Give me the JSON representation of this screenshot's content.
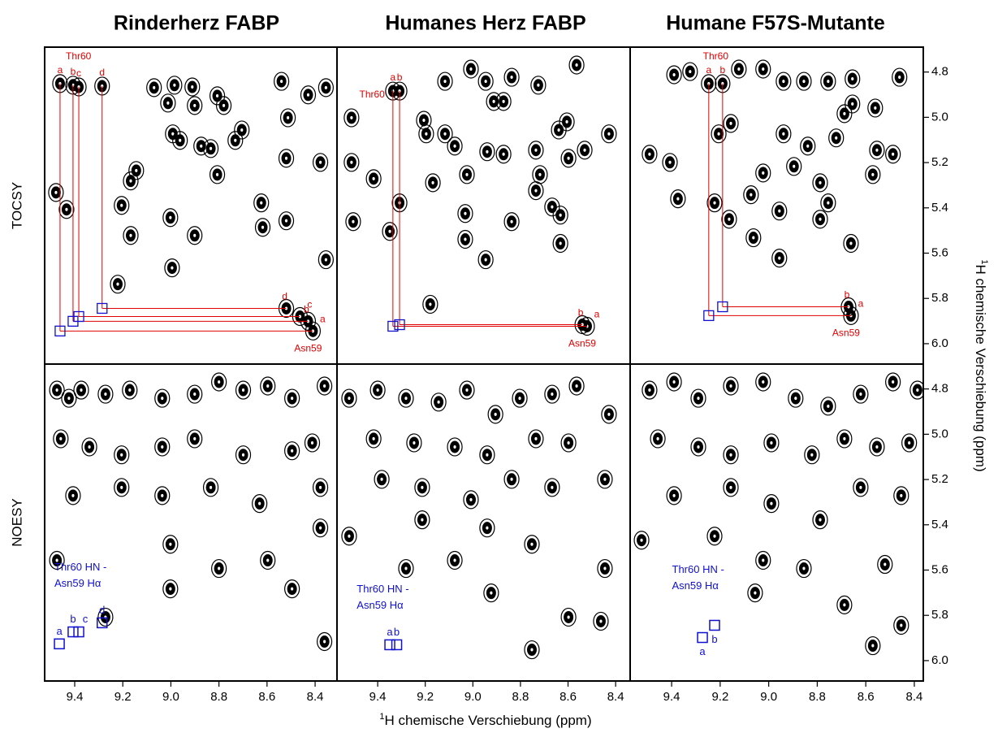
{
  "column_titles": [
    "Rinderherz FABP",
    "Humanes Herz FABP",
    "Humane F57S-Mutante"
  ],
  "row_labels": [
    "TOCSY",
    "NOESY"
  ],
  "x_axis_label": {
    "sup": "1",
    "text": "H chemische Verschiebung (ppm)"
  },
  "y_axis_label": {
    "sup": "1",
    "text": "H chemische Verschiebung (ppm)"
  },
  "xticks": [
    9.4,
    9.2,
    {
      "value": 9,
      "label": "9.0"
    },
    8.8,
    8.6,
    8.4
  ],
  "yticks": [
    4.8,
    {
      "value": 5,
      "label": "5.0"
    },
    5.2,
    5.4,
    5.6,
    5.8,
    {
      "value": 6,
      "label": "6.0"
    }
  ],
  "ylim": [
    4.69,
    6.09
  ],
  "columns": [
    {
      "xlim": [
        9.525,
        8.309
      ],
      "tocsy": {
        "thr_label": "Thr60",
        "asn_label": "Asn59",
        "correlations": [
          {
            "label": "a",
            "thr_hn": 9.461,
            "thr_ha": 4.851,
            "asn_hn": 8.409,
            "asn_ha": 5.944
          },
          {
            "label": "b",
            "thr_hn": 9.407,
            "thr_ha": 4.858,
            "asn_hn": 8.429,
            "asn_ha": 5.901
          },
          {
            "label": "c",
            "thr_hn": 9.383,
            "thr_ha": 4.866,
            "asn_hn": 8.463,
            "asn_ha": 5.88
          },
          {
            "label": "d",
            "thr_hn": 9.286,
            "thr_ha": 4.862,
            "asn_hn": 8.52,
            "asn_ha": 5.844
          }
        ],
        "peaks": [
          [
            9.07,
            4.869
          ],
          [
            8.985,
            4.858
          ],
          [
            8.911,
            4.866
          ],
          [
            8.901,
            4.948
          ],
          [
            9.012,
            4.937
          ],
          [
            8.807,
            4.905
          ],
          [
            8.78,
            4.948
          ],
          [
            8.54,
            4.841
          ],
          [
            8.513,
            5.002
          ],
          [
            8.355,
            4.869
          ],
          [
            8.429,
            4.901
          ],
          [
            8.992,
            5.073
          ],
          [
            8.962,
            5.102
          ],
          [
            8.874,
            5.127
          ],
          [
            8.834,
            5.138
          ],
          [
            8.732,
            5.102
          ],
          [
            8.705,
            5.056
          ],
          [
            9.167,
            5.281
          ],
          [
            9.144,
            5.235
          ],
          [
            8.807,
            5.253
          ],
          [
            8.624,
            5.378
          ],
          [
            8.52,
            5.181
          ],
          [
            8.378,
            5.199
          ],
          [
            9.478,
            5.332
          ],
          [
            9.434,
            5.407
          ],
          [
            9.205,
            5.389
          ],
          [
            9.002,
            5.443
          ],
          [
            9.167,
            5.522
          ],
          [
            8.901,
            5.522
          ],
          [
            8.618,
            5.486
          ],
          [
            8.355,
            5.629
          ],
          [
            9.221,
            5.737
          ],
          [
            8.995,
            5.665
          ],
          [
            8.52,
            5.457
          ]
        ]
      },
      "noesy": {
        "note": [
          "Thr60 HN -",
          "Asn59 Hα"
        ],
        "boxes": [
          {
            "label": "a",
            "x": 9.464,
            "y": 5.926
          },
          {
            "label": "b",
            "x": 9.407,
            "y": 5.873
          },
          {
            "label": "c",
            "x": 9.383,
            "y": 5.873
          },
          {
            "label": "d",
            "x": 9.286,
            "y": 5.833
          }
        ],
        "peaks": [
          [
            9.474,
            4.805
          ],
          [
            9.424,
            4.841
          ],
          [
            9.373,
            4.805
          ],
          [
            9.272,
            4.823
          ],
          [
            9.171,
            4.805
          ],
          [
            9.036,
            4.841
          ],
          [
            8.901,
            4.823
          ],
          [
            8.8,
            4.769
          ],
          [
            8.699,
            4.805
          ],
          [
            8.597,
            4.787
          ],
          [
            8.496,
            4.841
          ],
          [
            8.361,
            4.787
          ],
          [
            9.458,
            5.02
          ],
          [
            9.339,
            5.056
          ],
          [
            9.205,
            5.091
          ],
          [
            9.036,
            5.056
          ],
          [
            8.901,
            5.02
          ],
          [
            8.699,
            5.091
          ],
          [
            8.496,
            5.073
          ],
          [
            8.412,
            5.038
          ],
          [
            9.407,
            5.271
          ],
          [
            9.205,
            5.235
          ],
          [
            9.036,
            5.271
          ],
          [
            8.834,
            5.235
          ],
          [
            8.631,
            5.306
          ],
          [
            8.378,
            5.235
          ],
          [
            9.474,
            5.557
          ],
          [
            9.002,
            5.486
          ],
          [
            8.8,
            5.593
          ],
          [
            8.597,
            5.557
          ],
          [
            8.378,
            5.414
          ],
          [
            9.002,
            5.683
          ],
          [
            9.272,
            5.808
          ],
          [
            8.496,
            5.683
          ],
          [
            8.361,
            5.916
          ]
        ]
      }
    },
    {
      "xlim": [
        9.571,
        8.339
      ],
      "tocsy": {
        "thr_label": "Thr60",
        "asn_label": "Asn59",
        "correlations": [
          {
            "label": "a",
            "thr_hn": 9.336,
            "thr_ha": 4.884,
            "asn_hn": 8.52,
            "asn_ha": 5.923
          },
          {
            "label": "b",
            "thr_hn": 9.308,
            "thr_ha": 4.884,
            "asn_hn": 8.54,
            "asn_ha": 5.916
          }
        ],
        "peaks": [
          [
            9.51,
            5.002
          ],
          [
            9.206,
            5.013
          ],
          [
            9.117,
            4.841
          ],
          [
            9.008,
            4.787
          ],
          [
            8.946,
            4.841
          ],
          [
            8.837,
            4.823
          ],
          [
            8.871,
            4.93
          ],
          [
            8.725,
            4.858
          ],
          [
            8.564,
            4.769
          ],
          [
            8.605,
            5.02
          ],
          [
            8.639,
            5.056
          ],
          [
            8.912,
            4.93
          ],
          [
            9.196,
            5.073
          ],
          [
            9.117,
            5.073
          ],
          [
            9.076,
            5.127
          ],
          [
            8.94,
            5.152
          ],
          [
            8.871,
            5.163
          ],
          [
            8.735,
            5.145
          ],
          [
            8.598,
            5.181
          ],
          [
            8.53,
            5.145
          ],
          [
            8.428,
            5.073
          ],
          [
            9.51,
            5.199
          ],
          [
            9.417,
            5.271
          ],
          [
            9.168,
            5.289
          ],
          [
            9.025,
            5.253
          ],
          [
            8.718,
            5.253
          ],
          [
            8.735,
            5.324
          ],
          [
            9.503,
            5.461
          ],
          [
            9.308,
            5.378
          ],
          [
            9.032,
            5.425
          ],
          [
            8.837,
            5.461
          ],
          [
            8.632,
            5.432
          ],
          [
            8.667,
            5.396
          ],
          [
            9.032,
            5.539
          ],
          [
            8.632,
            5.557
          ],
          [
            8.946,
            5.629
          ],
          [
            9.349,
            5.504
          ],
          [
            9.179,
            5.826
          ]
        ]
      },
      "noesy": {
        "note": [
          "Thr60 HN -",
          "Asn59 Hα"
        ],
        "boxes": [
          {
            "label": "a",
            "x": 9.349,
            "y": 5.93
          },
          {
            "label": "b",
            "x": 9.32,
            "y": 5.93
          }
        ],
        "peaks": [
          [
            9.52,
            4.841
          ],
          [
            9.4,
            4.805
          ],
          [
            9.281,
            4.841
          ],
          [
            9.144,
            4.858
          ],
          [
            9.025,
            4.805
          ],
          [
            8.905,
            4.912
          ],
          [
            8.803,
            4.841
          ],
          [
            8.667,
            4.823
          ],
          [
            8.564,
            4.787
          ],
          [
            8.428,
            4.912
          ],
          [
            9.417,
            5.02
          ],
          [
            9.247,
            5.038
          ],
          [
            9.076,
            5.056
          ],
          [
            8.94,
            5.091
          ],
          [
            8.735,
            5.02
          ],
          [
            8.598,
            5.038
          ],
          [
            9.383,
            5.199
          ],
          [
            9.213,
            5.235
          ],
          [
            9.008,
            5.289
          ],
          [
            8.837,
            5.199
          ],
          [
            8.667,
            5.235
          ],
          [
            8.445,
            5.199
          ],
          [
            9.52,
            5.45
          ],
          [
            9.213,
            5.378
          ],
          [
            8.94,
            5.414
          ],
          [
            8.752,
            5.486
          ],
          [
            8.445,
            5.593
          ],
          [
            9.281,
            5.593
          ],
          [
            9.076,
            5.557
          ],
          [
            8.923,
            5.701
          ],
          [
            8.462,
            5.826
          ],
          [
            8.752,
            5.952
          ],
          [
            8.598,
            5.808
          ]
        ]
      }
    },
    {
      "xlim": [
        9.571,
        8.363
      ],
      "tocsy": {
        "thr_label": "Thr60",
        "asn_label": "Asn59",
        "correlations": [
          {
            "label": "a",
            "thr_hn": 9.247,
            "thr_ha": 4.851,
            "asn_hn": 8.661,
            "asn_ha": 5.876
          },
          {
            "label": "b",
            "thr_hn": 9.19,
            "thr_ha": 4.851,
            "asn_hn": 8.671,
            "asn_ha": 5.837
          }
        ],
        "peaks": [
          [
            9.39,
            4.812
          ],
          [
            9.324,
            4.798
          ],
          [
            9.123,
            4.787
          ],
          [
            9.023,
            4.787
          ],
          [
            8.939,
            4.841
          ],
          [
            8.855,
            4.841
          ],
          [
            8.755,
            4.841
          ],
          [
            8.655,
            4.83
          ],
          [
            8.461,
            4.823
          ],
          [
            8.655,
            4.941
          ],
          [
            8.561,
            4.959
          ],
          [
            8.688,
            4.984
          ],
          [
            9.156,
            5.027
          ],
          [
            9.206,
            5.073
          ],
          [
            8.939,
            5.073
          ],
          [
            8.839,
            5.127
          ],
          [
            8.722,
            5.091
          ],
          [
            8.554,
            5.145
          ],
          [
            8.488,
            5.163
          ],
          [
            9.491,
            5.163
          ],
          [
            9.407,
            5.199
          ],
          [
            9.023,
            5.246
          ],
          [
            8.896,
            5.217
          ],
          [
            9.073,
            5.342
          ],
          [
            8.788,
            5.289
          ],
          [
            8.571,
            5.253
          ],
          [
            9.374,
            5.36
          ],
          [
            9.223,
            5.378
          ],
          [
            8.755,
            5.378
          ],
          [
            8.788,
            5.45
          ],
          [
            8.956,
            5.414
          ],
          [
            9.163,
            5.45
          ],
          [
            9.063,
            5.532
          ],
          [
            8.661,
            5.557
          ],
          [
            8.956,
            5.622
          ]
        ]
      },
      "noesy": {
        "note": [
          "Thr60 HN -",
          "Asn59 Hα"
        ],
        "boxes": [
          {
            "label": "a",
            "x": 9.273,
            "y": 5.898
          },
          {
            "label": "b",
            "x": 9.223,
            "y": 5.844
          }
        ],
        "peaks": [
          [
            9.491,
            4.805
          ],
          [
            9.39,
            4.769
          ],
          [
            9.29,
            4.841
          ],
          [
            9.156,
            4.787
          ],
          [
            9.023,
            4.769
          ],
          [
            8.889,
            4.841
          ],
          [
            8.755,
            4.876
          ],
          [
            8.621,
            4.823
          ],
          [
            8.488,
            4.769
          ],
          [
            8.387,
            4.805
          ],
          [
            9.457,
            5.02
          ],
          [
            9.29,
            5.056
          ],
          [
            9.156,
            5.091
          ],
          [
            8.989,
            5.038
          ],
          [
            8.822,
            5.091
          ],
          [
            8.688,
            5.02
          ],
          [
            8.554,
            5.056
          ],
          [
            8.421,
            5.038
          ],
          [
            9.39,
            5.271
          ],
          [
            9.156,
            5.235
          ],
          [
            8.989,
            5.306
          ],
          [
            8.788,
            5.378
          ],
          [
            8.621,
            5.235
          ],
          [
            8.454,
            5.271
          ],
          [
            9.524,
            5.468
          ],
          [
            9.223,
            5.45
          ],
          [
            9.023,
            5.557
          ],
          [
            8.855,
            5.593
          ],
          [
            8.521,
            5.575
          ],
          [
            9.056,
            5.701
          ],
          [
            8.688,
            5.754
          ],
          [
            8.454,
            5.844
          ],
          [
            8.571,
            5.934
          ]
        ]
      }
    }
  ]
}
